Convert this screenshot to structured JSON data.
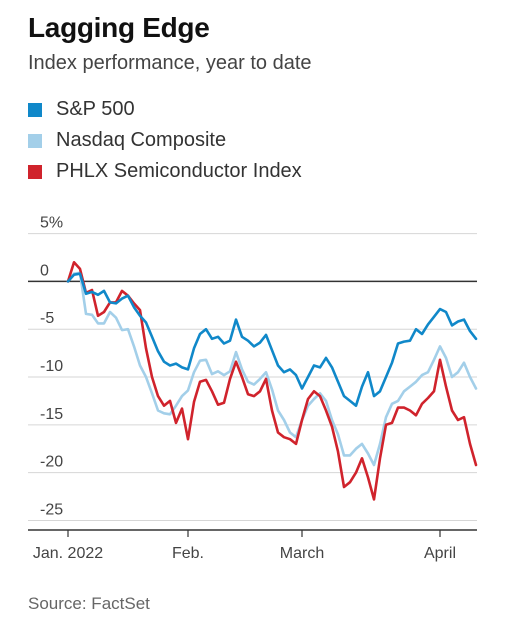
{
  "chart_data": {
    "type": "line",
    "title": "Lagging Edge",
    "subtitle": "Index performance, year to date",
    "source": "Source: FactSet",
    "ylim": [
      -26,
      6
    ],
    "y_ticks": [
      {
        "value": 5,
        "label": "5%"
      },
      {
        "value": 0,
        "label": "0"
      },
      {
        "value": -5,
        "label": "-5"
      },
      {
        "value": -10,
        "label": "-10"
      },
      {
        "value": -15,
        "label": "-15"
      },
      {
        "value": -20,
        "label": "-20"
      },
      {
        "value": -25,
        "label": "-25"
      }
    ],
    "x_ticks": [
      {
        "index": 0,
        "label": "Jan. 2022"
      },
      {
        "index": 20,
        "label": "Feb."
      },
      {
        "index": 39,
        "label": "March"
      },
      {
        "index": 62,
        "label": "April"
      }
    ],
    "grid": true,
    "legend_position": "top-left",
    "series": [
      {
        "name": "S&P 500",
        "color": "#1088c9",
        "values": [
          0,
          0.7,
          0.8,
          -1.3,
          -1.1,
          -1.4,
          -1.0,
          -2.2,
          -2.3,
          -1.8,
          -1.5,
          -2.7,
          -3.6,
          -4.3,
          -5.8,
          -7.3,
          -8.4,
          -8.8,
          -8.6,
          -9.0,
          -9.2,
          -7.0,
          -5.5,
          -5.0,
          -6.0,
          -5.8,
          -6.5,
          -6.2,
          -4.0,
          -5.8,
          -6.2,
          -6.8,
          -6.4,
          -5.6,
          -7.2,
          -8.8,
          -9.5,
          -9.2,
          -9.8,
          -11.2,
          -10.0,
          -8.8,
          -9.0,
          -8.0,
          -9.0,
          -10.5,
          -12.0,
          -12.5,
          -13.0,
          -11.0,
          -9.5,
          -12.0,
          -11.5,
          -10.0,
          -8.5,
          -6.5,
          -6.3,
          -6.2,
          -5.0,
          -5.5,
          -4.5,
          -3.7,
          -2.9,
          -3.2,
          -4.6,
          -4.2,
          -4.0,
          -5.2,
          -6.0
        ]
      },
      {
        "name": "Nasdaq Composite",
        "color": "#a3cfe9",
        "values": [
          0,
          0.8,
          0.9,
          -3.4,
          -3.5,
          -4.4,
          -4.4,
          -3.2,
          -3.8,
          -5.1,
          -5.0,
          -6.8,
          -8.8,
          -10.0,
          -11.7,
          -13.5,
          -13.8,
          -13.9,
          -13.0,
          -12.0,
          -11.4,
          -9.5,
          -8.3,
          -8.2,
          -9.7,
          -9.4,
          -9.8,
          -9.4,
          -7.4,
          -9.2,
          -10.5,
          -10.8,
          -10.2,
          -9.5,
          -11.3,
          -13.5,
          -14.5,
          -15.8,
          -16.3,
          -14.5,
          -13.0,
          -12.3,
          -11.7,
          -12.5,
          -14.5,
          -16.0,
          -18.2,
          -18.2,
          -17.5,
          -17.0,
          -18.0,
          -19.2,
          -17.0,
          -14.2,
          -12.8,
          -12.5,
          -11.5,
          -11.0,
          -10.5,
          -9.8,
          -9.5,
          -8.2,
          -6.8,
          -8.0,
          -10.0,
          -9.5,
          -8.5,
          -10.0,
          -11.2
        ]
      },
      {
        "name": "PHLX Semiconductor Index",
        "color": "#d0232c",
        "values": [
          0,
          2.0,
          1.3,
          -1.2,
          -0.9,
          -3.6,
          -3.2,
          -2.2,
          -2.2,
          -1.0,
          -1.5,
          -2.3,
          -3.0,
          -7.0,
          -10.0,
          -12.0,
          -13.0,
          -12.5,
          -14.8,
          -13.3,
          -16.5,
          -12.6,
          -10.5,
          -10.3,
          -11.5,
          -12.9,
          -12.7,
          -10.2,
          -8.4,
          -10.0,
          -11.8,
          -12.0,
          -11.5,
          -10.2,
          -13.5,
          -15.8,
          -16.3,
          -16.5,
          -17.0,
          -14.5,
          -12.3,
          -11.5,
          -12.0,
          -13.5,
          -15.2,
          -17.8,
          -21.5,
          -21.0,
          -20.0,
          -18.5,
          -20.5,
          -22.8,
          -18.5,
          -15.0,
          -14.8,
          -13.2,
          -13.2,
          -13.5,
          -14.0,
          -12.8,
          -12.2,
          -11.5,
          -8.2,
          -11.0,
          -13.5,
          -14.5,
          -14.2,
          -17.0,
          -19.2
        ]
      }
    ]
  }
}
